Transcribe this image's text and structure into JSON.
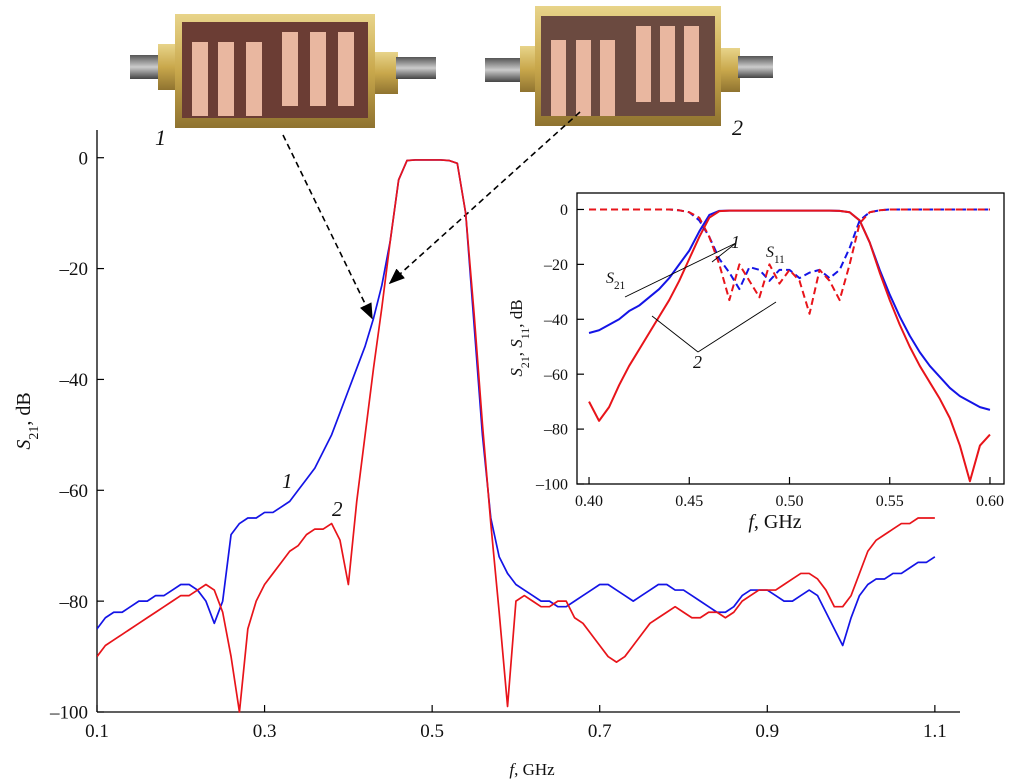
{
  "photo_labels": [
    "1",
    "2"
  ],
  "chart_data": [
    {
      "type": "line",
      "x_label": [
        "f",
        ", GHz"
      ],
      "y_label": [
        "S",
        "21",
        ", dB"
      ],
      "xlim": [
        0.1,
        1.13
      ],
      "ylim": [
        -100,
        5
      ],
      "xticks": [
        0.1,
        0.3,
        0.5,
        0.7,
        0.9,
        1.1
      ],
      "yticks": [
        {
          "value": 0,
          "label": "0"
        },
        {
          "value": -20,
          "label": "–20"
        },
        {
          "value": -40,
          "label": "–40"
        },
        {
          "value": -60,
          "label": "–60"
        },
        {
          "value": -80,
          "label": "–80"
        },
        {
          "value": -100,
          "label": "–100"
        }
      ],
      "annotations": [
        "1",
        "2"
      ],
      "x": [
        0.1,
        0.11,
        0.12,
        0.13,
        0.14,
        0.15,
        0.16,
        0.17,
        0.18,
        0.19,
        0.2,
        0.21,
        0.22,
        0.23,
        0.24,
        0.25,
        0.26,
        0.27,
        0.28,
        0.29,
        0.3,
        0.31,
        0.32,
        0.33,
        0.34,
        0.35,
        0.36,
        0.37,
        0.38,
        0.39,
        0.4,
        0.41,
        0.42,
        0.43,
        0.44,
        0.45,
        0.46,
        0.47,
        0.48,
        0.49,
        0.5,
        0.51,
        0.52,
        0.53,
        0.54,
        0.55,
        0.56,
        0.57,
        0.58,
        0.59,
        0.6,
        0.61,
        0.62,
        0.63,
        0.64,
        0.65,
        0.66,
        0.67,
        0.68,
        0.69,
        0.7,
        0.71,
        0.72,
        0.73,
        0.74,
        0.75,
        0.76,
        0.77,
        0.78,
        0.79,
        0.8,
        0.81,
        0.82,
        0.83,
        0.84,
        0.85,
        0.86,
        0.87,
        0.88,
        0.89,
        0.9,
        0.91,
        0.92,
        0.93,
        0.94,
        0.95,
        0.96,
        0.97,
        0.98,
        0.99,
        1.0,
        1.01,
        1.02,
        1.03,
        1.04,
        1.05,
        1.06,
        1.07,
        1.08,
        1.09,
        1.1
      ],
      "series": [
        {
          "color": "#1414e6",
          "dashed": false,
          "values": [
            -85,
            -83,
            -82,
            -82,
            -81,
            -80,
            -80,
            -79,
            -79,
            -78,
            -77,
            -77,
            -78,
            -80,
            -84,
            -80,
            -68,
            -66,
            -65,
            -65,
            -64,
            -64,
            -63,
            -62,
            -60,
            -58,
            -56,
            -53,
            -50,
            -46,
            -42,
            -38,
            -34,
            -29,
            -23,
            -15,
            -4,
            -0.5,
            -0.4,
            -0.4,
            -0.4,
            -0.4,
            -0.5,
            -1,
            -10,
            -30,
            -50,
            -65,
            -72,
            -75,
            -77,
            -78,
            -79,
            -80,
            -80,
            -81,
            -81,
            -80,
            -79,
            -78,
            -77,
            -77,
            -78,
            -79,
            -80,
            -79,
            -78,
            -77,
            -77,
            -78,
            -78,
            -79,
            -80,
            -81,
            -82,
            -82,
            -81,
            -79,
            -78,
            -78,
            -78,
            -79,
            -80,
            -80,
            -79,
            -78,
            -79,
            -82,
            -85,
            -88,
            -83,
            -79,
            -77,
            -76,
            -76,
            -75,
            -75,
            -74,
            -73,
            -73,
            -72
          ]
        },
        {
          "color": "#e8141a",
          "dashed": false,
          "values": [
            -90,
            -88,
            -87,
            -86,
            -85,
            -84,
            -83,
            -82,
            -81,
            -80,
            -79,
            -79,
            -78,
            -77,
            -78,
            -82,
            -90,
            -100,
            -85,
            -80,
            -77,
            -75,
            -73,
            -71,
            -70,
            -68,
            -67,
            -67,
            -66,
            -69,
            -77,
            -62,
            -50,
            -38,
            -27,
            -15,
            -4,
            -0.5,
            -0.4,
            -0.4,
            -0.4,
            -0.4,
            -0.5,
            -1,
            -10,
            -28,
            -48,
            -66,
            -82,
            -99,
            -80,
            -79,
            -80,
            -81,
            -81,
            -80,
            -80,
            -83,
            -84,
            -86,
            -88,
            -90,
            -91,
            -90,
            -88,
            -86,
            -84,
            -83,
            -82,
            -81,
            -82,
            -83,
            -83,
            -82,
            -82,
            -83,
            -82,
            -80,
            -79,
            -78,
            -78,
            -78,
            -77,
            -76,
            -75,
            -75,
            -76,
            -78,
            -81,
            -81,
            -79,
            -75,
            -71,
            -69,
            -68,
            -67,
            -66,
            -66,
            -65,
            -65,
            -65
          ]
        }
      ]
    },
    {
      "type": "line",
      "x_label": [
        "f",
        ", GHz"
      ],
      "y_label": [
        "S",
        "21",
        ", ",
        "S",
        "11",
        ", dB"
      ],
      "xlim": [
        0.394,
        0.607
      ],
      "ylim": [
        -100,
        6
      ],
      "xticks": [
        {
          "value": 0.4,
          "label": "0.40"
        },
        0.45,
        {
          "value": 0.5,
          "label": "0.50"
        },
        0.55,
        {
          "value": 0.6,
          "label": "0.60"
        }
      ],
      "yticks": [
        {
          "value": 0,
          "label": "0"
        },
        {
          "value": -20,
          "label": "–20"
        },
        {
          "value": -40,
          "label": "–40"
        },
        {
          "value": -60,
          "label": "–60"
        },
        {
          "value": -80,
          "label": "–80"
        },
        {
          "value": -100,
          "label": "–100"
        }
      ],
      "annotations": [
        "1",
        "2"
      ],
      "curve_labels": [
        [
          "S",
          "21"
        ],
        [
          "S",
          "11"
        ]
      ],
      "x": [
        0.4,
        0.405,
        0.41,
        0.415,
        0.42,
        0.425,
        0.43,
        0.435,
        0.44,
        0.445,
        0.45,
        0.455,
        0.46,
        0.465,
        0.47,
        0.475,
        0.48,
        0.485,
        0.49,
        0.495,
        0.5,
        0.505,
        0.51,
        0.515,
        0.52,
        0.525,
        0.53,
        0.535,
        0.54,
        0.545,
        0.55,
        0.555,
        0.56,
        0.565,
        0.57,
        0.575,
        0.58,
        0.585,
        0.59,
        0.595,
        0.6
      ],
      "series": [
        {
          "color": "#1414e6",
          "dashed": false,
          "values": [
            -45,
            -44,
            -42,
            -40,
            -37,
            -35,
            -32,
            -29,
            -25,
            -20,
            -15,
            -8,
            -2,
            -0.5,
            -0.4,
            -0.4,
            -0.4,
            -0.4,
            -0.4,
            -0.4,
            -0.4,
            -0.4,
            -0.4,
            -0.4,
            -0.4,
            -0.5,
            -1,
            -4,
            -12,
            -22,
            -31,
            -39,
            -46,
            -52,
            -57,
            -61,
            -65,
            -68,
            -70,
            -72,
            -73
          ]
        },
        {
          "color": "#e8141a",
          "dashed": false,
          "values": [
            -70,
            -77,
            -72,
            -64,
            -57,
            -51,
            -45,
            -39,
            -33,
            -26,
            -18,
            -10,
            -3,
            -0.6,
            -0.4,
            -0.4,
            -0.4,
            -0.4,
            -0.4,
            -0.4,
            -0.4,
            -0.4,
            -0.4,
            -0.4,
            -0.4,
            -0.5,
            -1,
            -4,
            -12,
            -23,
            -33,
            -42,
            -50,
            -57,
            -63,
            -69,
            -76,
            -86,
            -99,
            -86,
            -82
          ]
        },
        {
          "color": "#1414e6",
          "dashed": true,
          "values": [
            0,
            0,
            0,
            0,
            0,
            0,
            0,
            0,
            0,
            -0.3,
            -1,
            -4,
            -10,
            -18,
            -23,
            -29,
            -21,
            -22,
            -26,
            -22,
            -22,
            -25,
            -23,
            -22,
            -25,
            -22,
            -14,
            -4,
            -1,
            -0.3,
            0,
            0,
            0,
            0,
            0,
            0,
            0,
            0,
            0,
            0,
            0
          ]
        },
        {
          "color": "#e8141a",
          "dashed": true,
          "values": [
            0,
            0,
            0,
            0,
            0,
            0,
            0,
            0,
            0,
            -0.3,
            -1,
            -3,
            -10,
            -20,
            -33,
            -20,
            -26,
            -32,
            -20,
            -27,
            -22,
            -26,
            -38,
            -22,
            -26,
            -33,
            -20,
            -5,
            -1,
            -0.3,
            0,
            0,
            0,
            0,
            0,
            0,
            0,
            0,
            0,
            0,
            0
          ]
        }
      ]
    }
  ]
}
